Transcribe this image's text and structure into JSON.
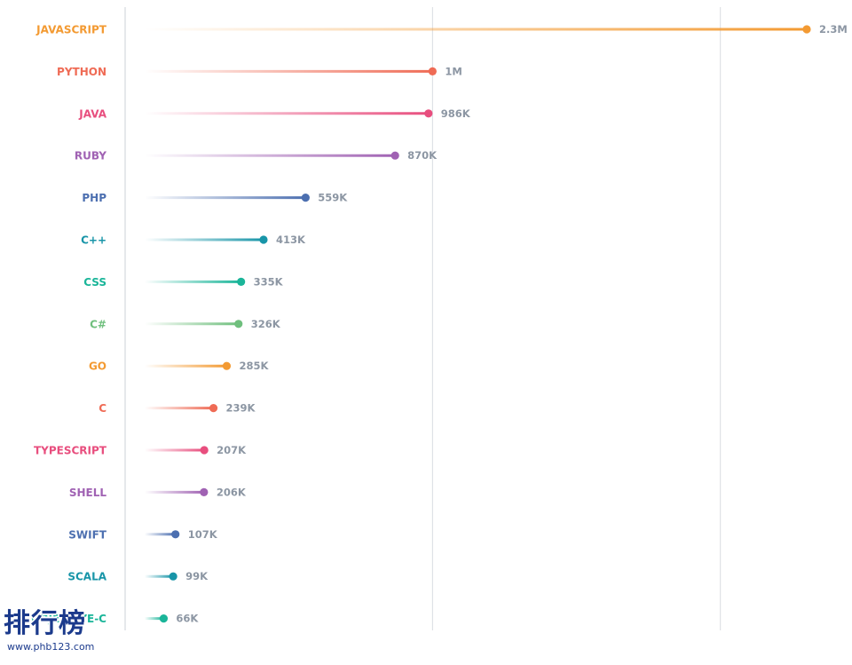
{
  "chart_data": {
    "type": "lollipop",
    "title": "",
    "xlabel": "",
    "ylabel": "",
    "xlim": [
      0,
      2600000
    ],
    "gridlines": [
      1000000,
      2000000
    ],
    "grid": true,
    "legend": "none",
    "categories": [
      "JAVASCRIPT",
      "PYTHON",
      "JAVA",
      "RUBY",
      "PHP",
      "C++",
      "CSS",
      "C#",
      "GO",
      "C",
      "TYPESCRIPT",
      "SHELL",
      "SWIFT",
      "SCALA",
      "OBJECTIVE-C"
    ],
    "values": [
      2300000,
      1000000,
      986000,
      870000,
      559000,
      413000,
      335000,
      326000,
      285000,
      239000,
      207000,
      206000,
      107000,
      99000,
      66000
    ],
    "value_labels": [
      "2.3M",
      "1M",
      "986K",
      "870K",
      "559K",
      "413K",
      "335K",
      "326K",
      "285K",
      "239K",
      "207K",
      "206K",
      "107K",
      "99K",
      "66K"
    ],
    "colors": [
      "#f39a32",
      "#ef6b55",
      "#e84e7e",
      "#a062b3",
      "#4c6fb0",
      "#1895a8",
      "#1ab599",
      "#6fbf7d",
      "#f39a32",
      "#ef6b55",
      "#e84e7e",
      "#a062b3",
      "#4c6fb0",
      "#1895a8",
      "#1ab599"
    ]
  },
  "watermark": {
    "glyphs": "排行榜",
    "url": "www.phb123.com"
  }
}
